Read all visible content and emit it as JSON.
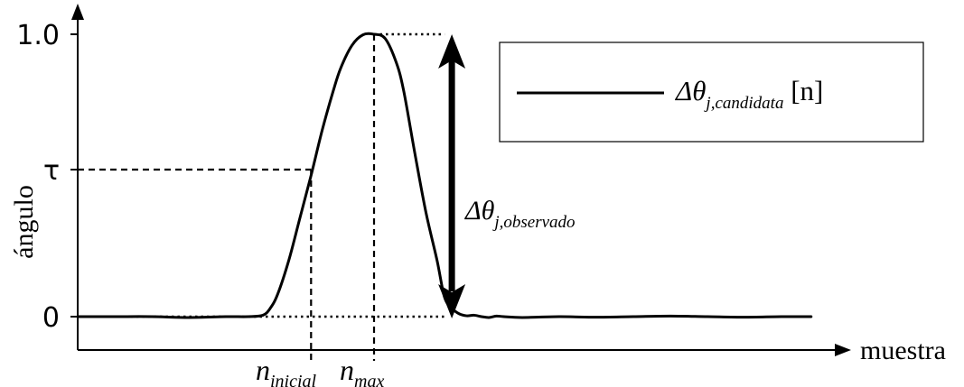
{
  "chart_data": {
    "type": "line",
    "xlabel": "muestra",
    "ylabel": "ángulo",
    "yticks": [
      {
        "value": 1.0,
        "label": "1.0"
      },
      {
        "value": 0.5,
        "label": "τ"
      },
      {
        "value": 0.0,
        "label": "0"
      }
    ],
    "ylim": [
      -0.12,
      1.15
    ],
    "xlim": [
      0,
      1000
    ],
    "grid": false,
    "legend_position": "top-right",
    "series": [
      {
        "legend": {
          "base": "Δθ",
          "sub": "j,candidata",
          "suffix": " [n]"
        },
        "x": [
          0,
          50,
          100,
          150,
          200,
          230,
          250,
          260,
          270,
          285,
          300,
          315,
          330,
          345,
          355,
          370,
          385,
          400,
          415,
          430,
          440,
          455,
          470,
          485,
          495,
          505,
          515,
          525,
          535,
          545,
          555,
          565,
          575,
          600,
          650,
          700,
          750,
          800,
          850,
          900,
          950,
          990
        ],
        "values": [
          0.0,
          0.0,
          0.0,
          -0.003,
          0.0,
          0.0,
          0.005,
          0.03,
          0.08,
          0.2,
          0.35,
          0.5,
          0.66,
          0.8,
          0.88,
          0.96,
          0.998,
          1.0,
          0.985,
          0.9,
          0.8,
          0.58,
          0.37,
          0.2,
          0.07,
          0.03,
          0.01,
          0.003,
          0.005,
          0.0,
          -0.003,
          0.002,
          0.0,
          -0.003,
          0.0,
          -0.002,
          0.0,
          0.002,
          0.0,
          -0.002,
          0.0,
          0.0
        ]
      }
    ],
    "annotations": {
      "tau_value": 0.5,
      "n_inicial": {
        "x": 315,
        "base": "n",
        "sub": "inicial"
      },
      "n_max": {
        "x": 400,
        "base": "n",
        "sub": "max"
      },
      "delta_observed": {
        "x": 505,
        "from": 0.0,
        "to": 1.0,
        "base": "Δθ",
        "sub": "j,observado"
      }
    }
  }
}
